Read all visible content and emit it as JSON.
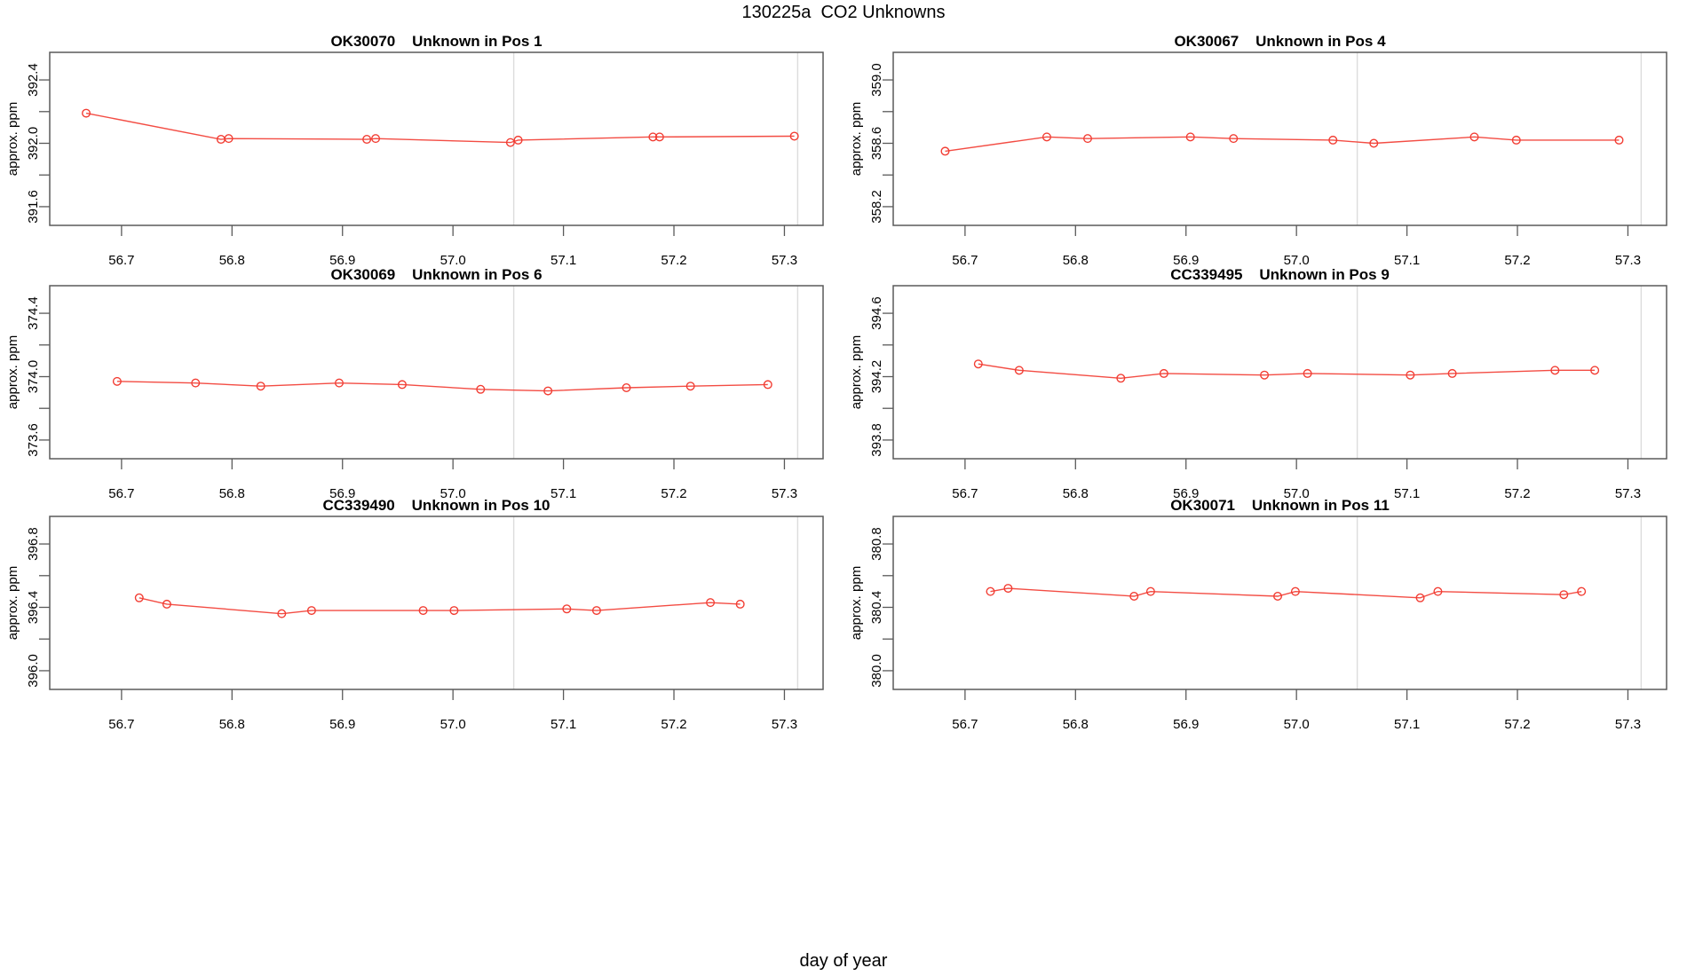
{
  "figure": {
    "title": "130225a  CO2 Unknowns",
    "x_axis_label": "day of year",
    "y_axis_label": "approx. ppm",
    "x_tick_values": [
      56.7,
      56.8,
      56.9,
      57.0,
      57.1,
      57.2,
      57.3
    ],
    "x_tick_labels": [
      "56.7",
      "56.8",
      "56.9",
      "57.0",
      "57.1",
      "57.2",
      "57.3"
    ],
    "colors": {
      "line": "#f23d33",
      "grid": "#dcdcdc",
      "frame": "#5a5a5a",
      "text": "#000000"
    }
  },
  "chart_data": [
    {
      "type": "line",
      "sample_id": "OK30070",
      "title": "Unknown in Pos 1",
      "xlabel": "day of year",
      "ylabel": "approx. ppm",
      "x": [
        56.668,
        56.79,
        56.797,
        56.922,
        56.93,
        57.052,
        57.059,
        57.181,
        57.187,
        57.309
      ],
      "y": [
        392.19,
        392.025,
        392.03,
        392.025,
        392.03,
        392.005,
        392.02,
        392.04,
        392.04,
        392.045
      ],
      "xlim": [
        56.635,
        57.335
      ],
      "ylim": [
        391.482,
        392.574
      ],
      "y_tick_values": [
        391.6,
        391.8,
        392.0,
        392.2,
        392.4
      ],
      "y_tick_labels": [
        "391.6",
        "",
        "392.0",
        "",
        "392.4"
      ],
      "vlines": [
        57.055,
        57.312
      ]
    },
    {
      "type": "line",
      "sample_id": "OK30067",
      "title": "Unknown in Pos 4",
      "xlabel": "day of year",
      "ylabel": "approx. ppm",
      "x": [
        56.682,
        56.774,
        56.811,
        56.904,
        56.943,
        57.033,
        57.07,
        57.161,
        57.199,
        57.292
      ],
      "y": [
        358.55,
        358.64,
        358.63,
        358.64,
        358.63,
        358.62,
        358.6,
        358.64,
        358.62,
        358.62
      ],
      "xlim": [
        56.635,
        57.335
      ],
      "ylim": [
        358.082,
        359.174
      ],
      "y_tick_values": [
        358.2,
        358.4,
        358.6,
        358.8,
        359.0
      ],
      "y_tick_labels": [
        "358.2",
        "",
        "358.6",
        "",
        "359.0"
      ],
      "vlines": [
        57.055,
        57.312
      ]
    },
    {
      "type": "line",
      "sample_id": "OK30069",
      "title": "Unknown in Pos 6",
      "xlabel": "day of year",
      "ylabel": "approx. ppm",
      "x": [
        56.696,
        56.767,
        56.826,
        56.897,
        56.954,
        57.025,
        57.086,
        57.157,
        57.215,
        57.285
      ],
      "y": [
        373.97,
        373.96,
        373.94,
        373.96,
        373.95,
        373.92,
        373.91,
        373.93,
        373.94,
        373.95
      ],
      "xlim": [
        56.635,
        57.335
      ],
      "ylim": [
        373.482,
        374.574
      ],
      "y_tick_values": [
        373.6,
        373.8,
        374.0,
        374.2,
        374.4
      ],
      "y_tick_labels": [
        "373.6",
        "",
        "374.0",
        "",
        "374.4"
      ],
      "vlines": [
        57.055,
        57.312
      ]
    },
    {
      "type": "line",
      "sample_id": "CC339495",
      "title": "Unknown in Pos 9",
      "xlabel": "day of year",
      "ylabel": "approx. ppm",
      "x": [
        56.712,
        56.749,
        56.841,
        56.88,
        56.971,
        57.01,
        57.103,
        57.141,
        57.234,
        57.27
      ],
      "y": [
        394.28,
        394.24,
        394.19,
        394.22,
        394.21,
        394.22,
        394.21,
        394.22,
        394.24,
        394.24
      ],
      "xlim": [
        56.635,
        57.335
      ],
      "ylim": [
        393.682,
        394.774
      ],
      "y_tick_values": [
        393.8,
        394.0,
        394.2,
        394.4,
        394.6
      ],
      "y_tick_labels": [
        "393.8",
        "",
        "394.2",
        "",
        "394.6"
      ],
      "vlines": [
        57.055,
        57.312
      ]
    },
    {
      "type": "line",
      "sample_id": "CC339490",
      "title": "Unknown in Pos 10",
      "xlabel": "day of year",
      "ylabel": "approx. ppm",
      "x": [
        56.716,
        56.741,
        56.845,
        56.872,
        56.973,
        57.001,
        57.103,
        57.13,
        57.233,
        57.26
      ],
      "y": [
        396.46,
        396.42,
        396.36,
        396.38,
        396.38,
        396.38,
        396.39,
        396.38,
        396.43,
        396.42
      ],
      "xlim": [
        56.635,
        57.335
      ],
      "ylim": [
        395.882,
        396.974
      ],
      "y_tick_values": [
        396.0,
        396.2,
        396.4,
        396.6,
        396.8
      ],
      "y_tick_labels": [
        "396.0",
        "",
        "396.4",
        "",
        "396.8"
      ],
      "vlines": [
        57.055,
        57.312
      ]
    },
    {
      "type": "line",
      "sample_id": "OK30071",
      "title": "Unknown in Pos 11",
      "xlabel": "day of year",
      "ylabel": "approx. ppm",
      "x": [
        56.723,
        56.739,
        56.853,
        56.868,
        56.983,
        56.999,
        57.112,
        57.128,
        57.242,
        57.258
      ],
      "y": [
        380.5,
        380.52,
        380.47,
        380.5,
        380.47,
        380.5,
        380.46,
        380.5,
        380.48,
        380.5
      ],
      "xlim": [
        56.635,
        57.335
      ],
      "ylim": [
        379.882,
        380.974
      ],
      "y_tick_values": [
        380.0,
        380.2,
        380.4,
        380.6,
        380.8
      ],
      "y_tick_labels": [
        "380.0",
        "",
        "380.4",
        "",
        "380.8"
      ],
      "vlines": [
        57.055,
        57.312
      ]
    }
  ]
}
